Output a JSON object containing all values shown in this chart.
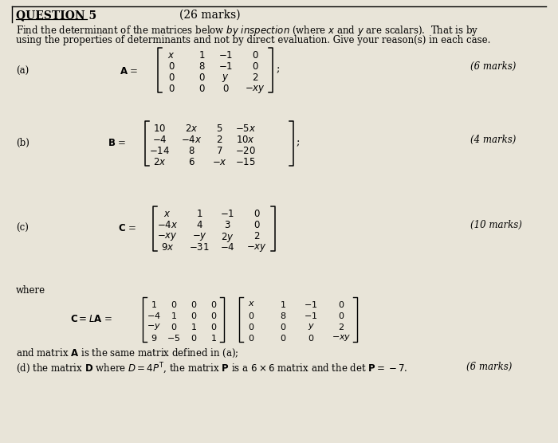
{
  "bg_color": "#e8e4d8",
  "title": "QUESTION 5",
  "marks_title": "(26 marks)",
  "part_a_marks": "(6 marks)",
  "part_b_marks": "(4 marks)",
  "part_c_marks": "(10 marks)",
  "part_d_marks": "(6 marks)"
}
